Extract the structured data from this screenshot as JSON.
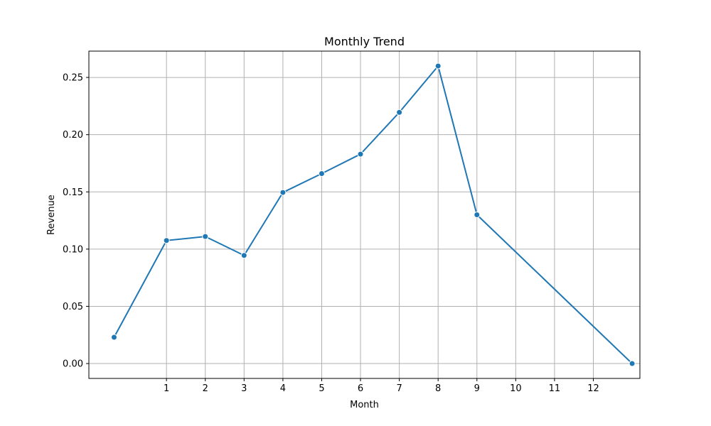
{
  "chart_data": {
    "type": "line",
    "title": "Monthly Trend",
    "xlabel": "Month",
    "ylabel": "Revenue",
    "xlim": [
      -1.0,
      13.2
    ],
    "ylim": [
      -0.013,
      0.273
    ],
    "grid": true,
    "xticks": [
      1,
      2,
      3,
      4,
      5,
      6,
      7,
      8,
      9,
      10,
      11,
      12
    ],
    "xtick_labels": [
      "1",
      "2",
      "3",
      "4",
      "5",
      "6",
      "7",
      "8",
      "9",
      "10",
      "11",
      "12"
    ],
    "yticks": [
      0.0,
      0.05,
      0.1,
      0.15,
      0.2,
      0.25
    ],
    "ytick_labels": [
      "0.00",
      "0.05",
      "0.10",
      "0.15",
      "0.20",
      "0.25"
    ],
    "series": [
      {
        "color": "#1f77b4",
        "marker": "circle",
        "x": [
          -0.35,
          1,
          2,
          3,
          4,
          5,
          6,
          7,
          8,
          9,
          13.0
        ],
        "y": [
          0.023,
          0.1075,
          0.111,
          0.0945,
          0.1495,
          0.166,
          0.183,
          0.2195,
          0.26,
          0.13,
          0.0
        ]
      }
    ]
  }
}
